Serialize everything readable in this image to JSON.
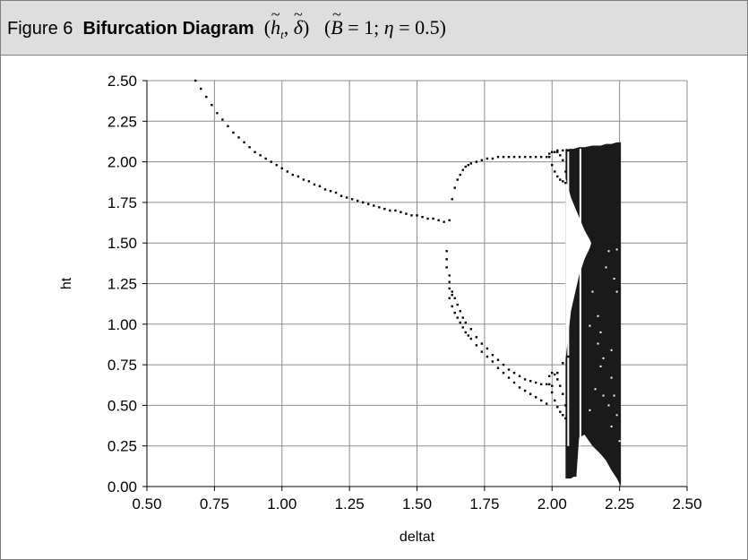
{
  "caption": {
    "figure_label": "Figure 6",
    "title": "Bifurcation Diagram",
    "vars_open": "(",
    "var1": "h",
    "var1_sub": "t",
    "sep1": ", ",
    "var2": "δ",
    "vars_close": ")",
    "params_open": "(",
    "param_b": "B",
    "param_b_value": " = 1; ",
    "param_eta": "η",
    "param_eta_value": " = 0.5)",
    "tilde": "~"
  },
  "chart_data": {
    "type": "scatter",
    "xlabel": "deltat",
    "ylabel": "ht",
    "xlim": [
      0.5,
      2.5
    ],
    "ylim": [
      0.0,
      2.5
    ],
    "xticks": [
      "0.50",
      "0.75",
      "1.00",
      "1.25",
      "1.50",
      "1.75",
      "2.00",
      "2.25",
      "2.50"
    ],
    "yticks": [
      "0.00",
      "0.25",
      "0.50",
      "0.75",
      "1.00",
      "1.25",
      "1.50",
      "1.75",
      "2.00",
      "2.25",
      "2.50"
    ],
    "grid": true,
    "marker_color": "#000000",
    "series": [
      {
        "x": [
          0.68,
          0.7,
          0.72,
          0.74,
          0.76,
          0.78,
          0.8,
          0.82,
          0.84,
          0.86,
          0.88,
          0.9,
          0.92,
          0.94,
          0.96,
          0.98,
          1.0,
          1.02,
          1.04,
          1.06,
          1.08,
          1.1,
          1.12,
          1.14,
          1.16,
          1.18,
          1.2,
          1.22,
          1.24,
          1.26,
          1.28,
          1.3,
          1.32,
          1.34,
          1.36,
          1.38,
          1.4,
          1.42,
          1.44,
          1.46,
          1.48,
          1.5,
          1.52,
          1.54,
          1.56,
          1.58,
          1.6,
          1.62,
          1.63,
          1.64,
          1.65,
          1.66,
          1.67,
          1.68,
          1.69,
          1.7,
          1.72,
          1.74,
          1.76,
          1.78,
          1.8,
          1.82,
          1.84,
          1.86,
          1.88,
          1.9,
          1.92,
          1.94,
          1.96,
          1.98,
          2.0,
          2.02,
          2.04,
          2.06,
          1.62,
          1.63,
          1.64,
          1.65,
          1.66,
          1.67,
          1.68,
          1.69,
          1.7,
          1.72,
          1.74,
          1.76,
          1.78,
          1.8,
          1.82,
          1.84,
          1.86,
          1.88,
          1.9,
          1.92,
          1.94,
          1.96,
          1.98,
          2.0,
          2.02,
          2.04,
          2.06,
          1.61,
          1.61,
          1.61,
          1.62,
          1.62,
          1.62,
          1.63,
          1.63,
          1.64,
          1.65,
          1.66,
          1.67,
          1.68,
          1.7,
          1.72,
          1.74,
          1.76,
          1.78,
          1.8,
          1.82,
          1.84,
          1.86,
          1.88,
          1.9,
          1.92,
          1.94,
          1.96,
          1.98,
          1.99,
          2.0,
          2.01,
          2.02,
          2.03,
          2.04,
          2.05,
          2.05,
          2.04,
          2.03,
          2.02,
          2.01,
          2.0,
          1.99,
          1.99,
          2.0,
          2.01,
          2.02,
          2.03,
          2.04,
          2.05,
          2.05,
          2.04,
          2.03,
          2.02,
          2.01,
          2.0,
          1.99
        ],
        "y": [
          2.5,
          2.45,
          2.4,
          2.35,
          2.3,
          2.26,
          2.22,
          2.18,
          2.15,
          2.12,
          2.09,
          2.06,
          2.04,
          2.02,
          2.0,
          1.98,
          1.96,
          1.94,
          1.92,
          1.91,
          1.89,
          1.88,
          1.86,
          1.85,
          1.83,
          1.82,
          1.81,
          1.79,
          1.78,
          1.77,
          1.76,
          1.75,
          1.74,
          1.73,
          1.72,
          1.71,
          1.7,
          1.7,
          1.69,
          1.68,
          1.67,
          1.67,
          1.66,
          1.65,
          1.65,
          1.64,
          1.63,
          1.64,
          1.77,
          1.84,
          1.89,
          1.92,
          1.95,
          1.97,
          1.98,
          1.99,
          2.0,
          2.01,
          2.02,
          2.02,
          2.03,
          2.03,
          2.03,
          2.03,
          2.03,
          2.03,
          2.03,
          2.03,
          2.03,
          2.03,
          2.06,
          2.07,
          2.07,
          2.07,
          1.16,
          1.11,
          1.07,
          1.04,
          1.01,
          0.98,
          0.95,
          0.93,
          0.91,
          0.87,
          0.83,
          0.8,
          0.77,
          0.73,
          0.7,
          0.67,
          0.64,
          0.61,
          0.59,
          0.57,
          0.55,
          0.53,
          0.51,
          0.62,
          0.7,
          0.76,
          0.8,
          1.45,
          1.4,
          1.35,
          1.3,
          1.26,
          1.22,
          1.2,
          1.18,
          1.16,
          1.12,
          1.08,
          1.04,
          1.01,
          0.97,
          0.92,
          0.88,
          0.85,
          0.81,
          0.78,
          0.75,
          0.72,
          0.7,
          0.68,
          0.66,
          0.65,
          0.64,
          0.63,
          0.63,
          2.03,
          1.98,
          1.94,
          1.91,
          1.89,
          1.88,
          1.87,
          1.94,
          2.01,
          2.04,
          2.06,
          2.06,
          2.06,
          2.05,
          0.63,
          0.58,
          0.53,
          0.49,
          0.46,
          0.44,
          0.42,
          0.5,
          0.57,
          0.62,
          0.66,
          0.69,
          0.7,
          0.68
        ]
      }
    ],
    "chaotic_band": {
      "x_start": 2.05,
      "x_end": 2.255,
      "upper": [
        [
          2.05,
          2.08
        ],
        [
          2.08,
          2.08
        ],
        [
          2.1,
          2.09
        ],
        [
          2.12,
          2.09
        ],
        [
          2.15,
          2.1
        ],
        [
          2.18,
          2.1
        ],
        [
          2.2,
          2.11
        ],
        [
          2.22,
          2.11
        ],
        [
          2.24,
          2.12
        ],
        [
          2.255,
          2.12
        ]
      ],
      "lower": [
        [
          2.05,
          0.05
        ],
        [
          2.07,
          0.05
        ],
        [
          2.08,
          0.06
        ],
        [
          2.09,
          0.06
        ],
        [
          2.1,
          0.3
        ],
        [
          2.12,
          0.32
        ],
        [
          2.15,
          0.25
        ],
        [
          2.18,
          0.2
        ],
        [
          2.2,
          0.16
        ],
        [
          2.22,
          0.1
        ],
        [
          2.24,
          0.05
        ],
        [
          2.255,
          0.0
        ]
      ],
      "inner_gap": [
        [
          2.05,
          1.9
        ],
        [
          2.07,
          1.78
        ],
        [
          2.1,
          1.66
        ],
        [
          2.12,
          1.58
        ],
        [
          2.14,
          1.52
        ],
        [
          2.145,
          1.5
        ],
        [
          2.14,
          1.47
        ],
        [
          2.12,
          1.4
        ],
        [
          2.1,
          1.3
        ],
        [
          2.07,
          1.08
        ],
        [
          2.06,
          0.93
        ],
        [
          2.05,
          0.78
        ]
      ]
    },
    "white_lines_x": [
      2.105,
      2.06
    ],
    "white_specks": [
      [
        2.21,
        1.45
      ],
      [
        2.24,
        1.46
      ],
      [
        2.23,
        1.28
      ],
      [
        2.24,
        1.2
      ],
      [
        2.17,
        1.05
      ],
      [
        2.14,
        0.99
      ],
      [
        2.18,
        0.95
      ],
      [
        2.17,
        0.88
      ],
      [
        2.22,
        0.84
      ],
      [
        2.19,
        0.79
      ],
      [
        2.18,
        0.74
      ],
      [
        2.22,
        0.67
      ],
      [
        2.16,
        0.6
      ],
      [
        2.19,
        0.56
      ],
      [
        2.23,
        0.56
      ],
      [
        2.14,
        0.47
      ],
      [
        2.24,
        0.44
      ],
      [
        2.22,
        0.37
      ],
      [
        2.25,
        0.28
      ],
      [
        2.2,
        1.35
      ],
      [
        2.15,
        1.2
      ],
      [
        2.21,
        0.5
      ]
    ]
  }
}
